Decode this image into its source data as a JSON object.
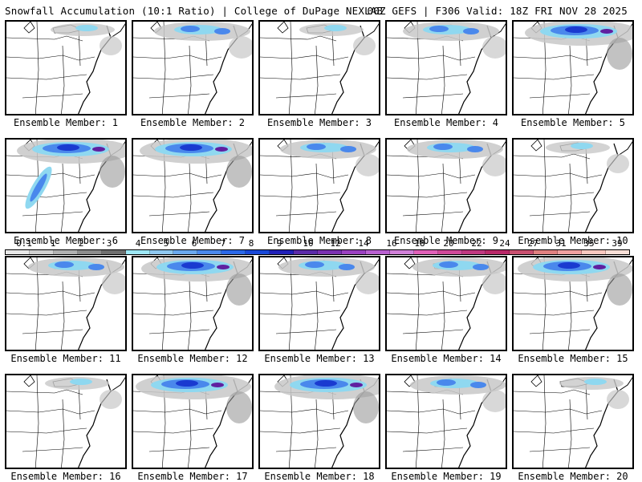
{
  "header": {
    "left_title": "Snowfall Accumulation (10:1 Ratio) | College of DuPage NEXLAB",
    "right_title": "00Z GEFS | F306 Valid: 18Z FRI NOV 28 2025"
  },
  "members": [
    {
      "label": "Ensemble Member: 1",
      "snow": "light"
    },
    {
      "label": "Ensemble Member: 2",
      "snow": "moderate"
    },
    {
      "label": "Ensemble Member: 3",
      "snow": "light"
    },
    {
      "label": "Ensemble Member: 4",
      "snow": "moderate"
    },
    {
      "label": "Ensemble Member: 5",
      "snow": "heavy"
    },
    {
      "label": "Ensemble Member: 6",
      "snow": "heavy"
    },
    {
      "label": "Ensemble Member: 7",
      "snow": "heavy"
    },
    {
      "label": "Ensemble Member: 8",
      "snow": "moderate"
    },
    {
      "label": "Ensemble Member: 9",
      "snow": "moderate"
    },
    {
      "label": "Ensemble Member: 10",
      "snow": "light"
    },
    {
      "label": "Ensemble Member: 11",
      "snow": "moderate"
    },
    {
      "label": "Ensemble Member: 12",
      "snow": "heavy"
    },
    {
      "label": "Ensemble Member: 13",
      "snow": "moderate"
    },
    {
      "label": "Ensemble Member: 14",
      "snow": "moderate"
    },
    {
      "label": "Ensemble Member: 15",
      "snow": "heavy"
    },
    {
      "label": "Ensemble Member: 16",
      "snow": "light"
    },
    {
      "label": "Ensemble Member: 17",
      "snow": "heavy"
    },
    {
      "label": "Ensemble Member: 18",
      "snow": "heavy"
    },
    {
      "label": "Ensemble Member: 19",
      "snow": "moderate"
    },
    {
      "label": "Ensemble Member: 20",
      "snow": "light"
    }
  ],
  "colorbar": {
    "labels": [
      "0.1",
      "1",
      "2",
      "3",
      "4",
      "5",
      "6",
      "7",
      "8",
      "9",
      "10",
      "12",
      "14",
      "16",
      "18",
      "20",
      "22",
      "24",
      "27",
      "31",
      "35",
      "39"
    ],
    "colors": [
      "#e8e8e8",
      "#d0d0d0",
      "#b0b0b0",
      "#8c8c8c",
      "#6f6f6f",
      "#9ee8f5",
      "#8fc8f0",
      "#6aa8ee",
      "#4a88ec",
      "#2a68e8",
      "#1848d8",
      "#2020b8",
      "#5a2aa8",
      "#7a30b0",
      "#9a40c0",
      "#b860d0",
      "#d080d8",
      "#e060b8",
      "#d04898",
      "#c03880",
      "#b82868",
      "#c85070",
      "#e08080",
      "#f0a0a0",
      "#f8c8c0",
      "#f8e0d8"
    ]
  }
}
